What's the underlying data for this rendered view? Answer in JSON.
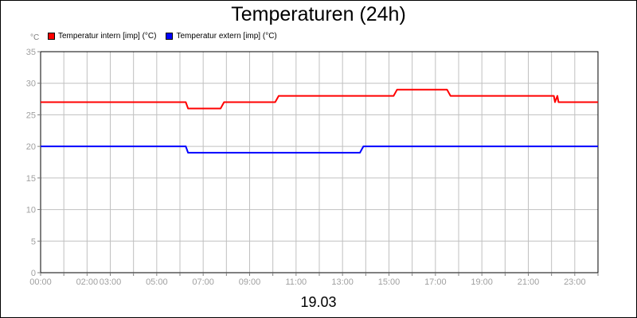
{
  "chart_data": {
    "type": "line",
    "title": "Temperaturen (24h)",
    "ylabel": "°C",
    "xlabel": "19.03",
    "ylim": [
      0,
      35
    ],
    "xlim": [
      0,
      24
    ],
    "grid": true,
    "legend_position": "top-left",
    "y_ticks": [
      "0",
      "5",
      "10",
      "15",
      "20",
      "25",
      "30",
      "35"
    ],
    "x_ticks": [
      {
        "t": 0,
        "label": "00:00"
      },
      {
        "t": 2,
        "label": "02:00"
      },
      {
        "t": 3,
        "label": "03:00"
      },
      {
        "t": 5,
        "label": "05:00"
      },
      {
        "t": 7,
        "label": "07:00"
      },
      {
        "t": 9,
        "label": "09:00"
      },
      {
        "t": 11,
        "label": "11:00"
      },
      {
        "t": 13,
        "label": "13:00"
      },
      {
        "t": 15,
        "label": "15:00"
      },
      {
        "t": 17,
        "label": "17:00"
      },
      {
        "t": 19,
        "label": "19:00"
      },
      {
        "t": 21,
        "label": "21:00"
      },
      {
        "t": 23,
        "label": "23:00"
      }
    ],
    "series": [
      {
        "name": "Temperatur intern [imp] (°C)",
        "color": "#ff0000",
        "x": [
          0,
          6.25,
          6.35,
          7.75,
          7.9,
          10.1,
          10.25,
          15.2,
          15.35,
          17.5,
          17.65,
          22.1,
          22.15,
          22.25,
          22.3,
          24
        ],
        "y": [
          27,
          27,
          26,
          26,
          27,
          27,
          28,
          28,
          29,
          29,
          28,
          28,
          27,
          28,
          27,
          27
        ]
      },
      {
        "name": "Temperatur extern [imp] (°C)",
        "color": "#0000ff",
        "x": [
          0,
          6.25,
          6.35,
          13.75,
          13.9,
          24
        ],
        "y": [
          20,
          20,
          19,
          19,
          20,
          20
        ]
      }
    ]
  }
}
